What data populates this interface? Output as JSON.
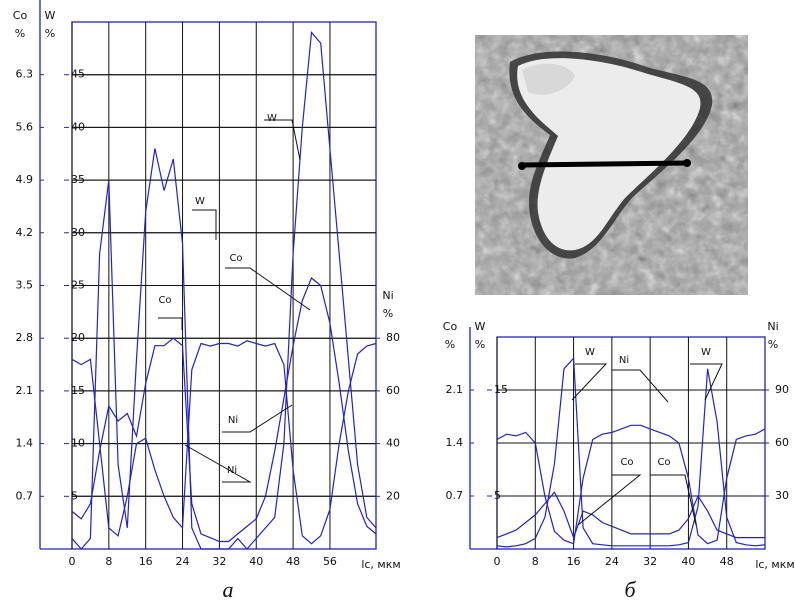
{
  "chart_data": [
    {
      "type": "line",
      "panel_label": "а",
      "x_label": "lc, мкм",
      "y_label": "W",
      "y2_label": "Ni",
      "y3_label": "Co",
      "unit": "%",
      "xlim": [
        0,
        66
      ],
      "xticks": [
        0,
        8,
        16,
        24,
        32,
        40,
        48,
        56
      ],
      "ylim": [
        0,
        50
      ],
      "yticks": [
        5,
        10,
        15,
        20,
        25,
        30,
        35,
        40,
        45
      ],
      "y2lim": [
        0,
        200
      ],
      "y2ticks": [
        20,
        40,
        60,
        80
      ],
      "y3lim": [
        0,
        7
      ],
      "y3ticks": [
        0.7,
        1.4,
        2.1,
        2.8,
        3.5,
        4.2,
        4.9,
        5.6,
        6.3
      ],
      "x": [
        0,
        2,
        4,
        6,
        8,
        10,
        12,
        14,
        16,
        18,
        20,
        22,
        24,
        26,
        28,
        30,
        32,
        34,
        36,
        38,
        40,
        42,
        44,
        46,
        48,
        50,
        52,
        54,
        56,
        58,
        60,
        62,
        64,
        66
      ],
      "series": [
        {
          "name": "W",
          "color": "#2323c8",
          "values": [
            1,
            0,
            1,
            28,
            35,
            8,
            2,
            18,
            32,
            38,
            34,
            37,
            29,
            2,
            0,
            0,
            0,
            0,
            1,
            0,
            1,
            2,
            3,
            10,
            28,
            40,
            49,
            48,
            38,
            28,
            18,
            8,
            3,
            2
          ]
        },
        {
          "name": "Co",
          "color": "#2323c8",
          "axis": "y3",
          "values": [
            0.5,
            0.4,
            0.6,
            1.3,
            1.9,
            1.7,
            1.8,
            1.5,
            2.2,
            2.7,
            2.7,
            2.8,
            2.7,
            0.6,
            0.2,
            0.15,
            0.1,
            0.1,
            0.2,
            0.3,
            0.4,
            0.7,
            1.3,
            2.0,
            2.7,
            3.3,
            3.6,
            3.5,
            3.0,
            2.2,
            1.3,
            0.6,
            0.3,
            0.2
          ]
        },
        {
          "name": "Ni",
          "color": "#2323c8",
          "axis": "y2",
          "values": [
            72,
            70,
            72,
            40,
            8,
            5,
            20,
            40,
            42,
            30,
            20,
            12,
            8,
            68,
            78,
            77,
            78,
            78,
            77,
            79,
            78,
            77,
            78,
            70,
            30,
            5,
            2,
            5,
            15,
            40,
            60,
            74,
            77,
            78
          ]
        }
      ]
    },
    {
      "type": "line",
      "panel_label": "б",
      "x_label": "lc, мкм",
      "y_label": "W",
      "y2_label": "Ni",
      "y3_label": "Co",
      "unit": "%",
      "xlim": [
        0,
        56
      ],
      "xticks": [
        0,
        8,
        16,
        24,
        32,
        40,
        48
      ],
      "ylim": [
        0,
        20
      ],
      "yticks": [
        5,
        15
      ],
      "y2lim": [
        0,
        120
      ],
      "y2ticks": [
        30,
        60,
        90
      ],
      "y3lim": [
        0,
        2.8
      ],
      "y3ticks": [
        0.7,
        1.4,
        2.1
      ],
      "x": [
        0,
        2,
        4,
        6,
        8,
        10,
        12,
        14,
        16,
        18,
        20,
        22,
        24,
        26,
        28,
        30,
        32,
        34,
        36,
        38,
        40,
        42,
        44,
        46,
        48,
        50,
        52,
        54,
        56
      ],
      "series": [
        {
          "name": "W",
          "color": "#2323c8",
          "values": [
            0.3,
            0.2,
            0.3,
            0.5,
            1,
            3,
            8,
            17,
            18,
            2,
            0.5,
            0.4,
            0.3,
            0.3,
            0.3,
            0.3,
            0.3,
            0.3,
            0.3,
            0.4,
            0.6,
            4,
            17,
            12,
            3,
            0.6,
            0.4,
            0.3,
            0.4
          ]
        },
        {
          "name": "Co",
          "color": "#2323c8",
          "axis": "y3",
          "values": [
            0.15,
            0.2,
            0.25,
            0.35,
            0.45,
            0.6,
            0.75,
            0.5,
            0.15,
            0.5,
            0.45,
            0.35,
            0.3,
            0.25,
            0.2,
            0.2,
            0.2,
            0.2,
            0.2,
            0.25,
            0.4,
            0.7,
            0.5,
            0.25,
            0.2,
            0.15,
            0.15,
            0.15,
            0.15
          ]
        },
        {
          "name": "Ni",
          "color": "#2323c8",
          "axis": "y2",
          "values": [
            62,
            65,
            64,
            66,
            60,
            30,
            10,
            5,
            3,
            40,
            62,
            65,
            66,
            68,
            70,
            70,
            68,
            66,
            64,
            60,
            40,
            8,
            3,
            5,
            40,
            62,
            64,
            65,
            68
          ]
        }
      ]
    }
  ]
}
